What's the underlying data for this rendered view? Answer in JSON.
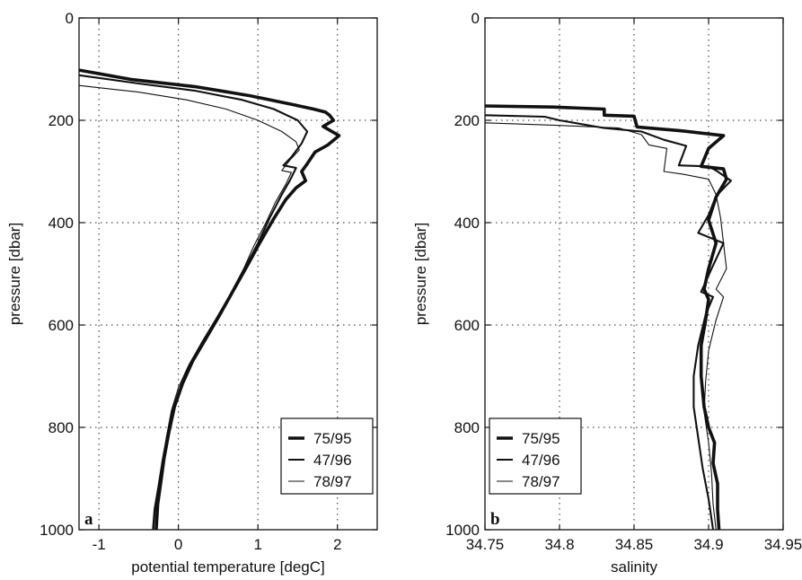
{
  "chart_data": [
    {
      "type": "line",
      "panel_label": "a",
      "xlabel": "potential temperature [degC]",
      "ylabel": "pressure [dbar]",
      "xlim": [
        -1.25,
        2.5
      ],
      "ylim": [
        1000,
        0
      ],
      "y_reversed": true,
      "xticks": [
        -1,
        0,
        1,
        2
      ],
      "xtick_labels": [
        "-1",
        "0",
        "1",
        "2"
      ],
      "yticks": [
        0,
        200,
        400,
        600,
        800,
        1000
      ],
      "ytick_labels": [
        "0",
        "200",
        "400",
        "600",
        "800",
        "1000"
      ],
      "grid": true,
      "legend_position": "lower-right",
      "series": [
        {
          "name": "75/95",
          "line_weight": "thick",
          "points": [
            [
              -1.25,
              102
            ],
            [
              -0.6,
              120
            ],
            [
              0.2,
              134
            ],
            [
              0.9,
              152
            ],
            [
              1.4,
              168
            ],
            [
              1.7,
              178
            ],
            [
              1.85,
              184
            ],
            [
              1.9,
              190
            ],
            [
              1.95,
              200
            ],
            [
              1.82,
              212
            ],
            [
              2.02,
              230
            ],
            [
              1.88,
              248
            ],
            [
              1.72,
              262
            ],
            [
              1.62,
              285
            ],
            [
              1.55,
              300
            ],
            [
              1.6,
              318
            ],
            [
              1.48,
              332
            ],
            [
              1.35,
              355
            ],
            [
              1.2,
              392
            ],
            [
              1.02,
              440
            ],
            [
              0.88,
              480
            ],
            [
              0.7,
              530
            ],
            [
              0.52,
              580
            ],
            [
              0.35,
              625
            ],
            [
              0.18,
              670
            ],
            [
              0.05,
              715
            ],
            [
              -0.05,
              760
            ],
            [
              -0.12,
              810
            ],
            [
              -0.18,
              860
            ],
            [
              -0.22,
              905
            ],
            [
              -0.26,
              950
            ],
            [
              -0.28,
              1000
            ]
          ]
        },
        {
          "name": "47/96",
          "line_weight": "medium",
          "points": [
            [
              -1.25,
              112
            ],
            [
              -0.5,
              128
            ],
            [
              0.2,
              142
            ],
            [
              0.8,
              160
            ],
            [
              1.2,
              178
            ],
            [
              1.5,
              200
            ],
            [
              1.62,
              222
            ],
            [
              1.55,
              245
            ],
            [
              1.42,
              272
            ],
            [
              1.32,
              288
            ],
            [
              1.48,
              293
            ],
            [
              1.4,
              318
            ],
            [
              1.3,
              345
            ],
            [
              1.15,
              390
            ],
            [
              1.0,
              440
            ],
            [
              0.85,
              485
            ],
            [
              0.68,
              535
            ],
            [
              0.5,
              585
            ],
            [
              0.32,
              630
            ],
            [
              0.15,
              675
            ],
            [
              0.03,
              720
            ],
            [
              -0.07,
              765
            ],
            [
              -0.14,
              815
            ],
            [
              -0.2,
              865
            ],
            [
              -0.25,
              915
            ],
            [
              -0.3,
              960
            ],
            [
              -0.32,
              1000
            ]
          ]
        },
        {
          "name": "78/97",
          "line_weight": "thin",
          "points": [
            [
              -1.25,
              132
            ],
            [
              -0.5,
              145
            ],
            [
              0.1,
              160
            ],
            [
              0.6,
              178
            ],
            [
              1.0,
              200
            ],
            [
              1.3,
              222
            ],
            [
              1.48,
              242
            ],
            [
              1.52,
              258
            ],
            [
              1.4,
              278
            ],
            [
              1.3,
              298
            ],
            [
              1.42,
              302
            ],
            [
              1.35,
              325
            ],
            [
              1.22,
              360
            ],
            [
              1.1,
              400
            ],
            [
              0.95,
              445
            ],
            [
              0.82,
              490
            ],
            [
              0.65,
              540
            ],
            [
              0.47,
              588
            ],
            [
              0.3,
              632
            ],
            [
              0.13,
              678
            ],
            [
              0.0,
              722
            ],
            [
              -0.09,
              768
            ],
            [
              -0.15,
              818
            ],
            [
              -0.2,
              868
            ],
            [
              -0.24,
              915
            ],
            [
              -0.29,
              960
            ],
            [
              -0.31,
              1000
            ]
          ]
        }
      ]
    },
    {
      "type": "line",
      "panel_label": "b",
      "xlabel": "salinity",
      "ylabel": "pressure [dbar]",
      "xlim": [
        34.75,
        34.95
      ],
      "ylim": [
        1000,
        0
      ],
      "y_reversed": true,
      "xticks": [
        34.75,
        34.8,
        34.85,
        34.9,
        34.95
      ],
      "xtick_labels": [
        "34.75",
        "34.8",
        "34.85",
        "34.9",
        "34.95"
      ],
      "yticks": [
        0,
        200,
        400,
        600,
        800,
        1000
      ],
      "ytick_labels": [
        "0",
        "200",
        "400",
        "600",
        "800",
        "1000"
      ],
      "grid": true,
      "legend_position": "lower-left",
      "series": [
        {
          "name": "75/95",
          "line_weight": "thick",
          "points": [
            [
              34.75,
              172
            ],
            [
              34.795,
              174
            ],
            [
              34.83,
              178
            ],
            [
              34.83,
              190
            ],
            [
              34.85,
              192
            ],
            [
              34.852,
              213
            ],
            [
              34.88,
              220
            ],
            [
              34.91,
              230
            ],
            [
              34.9,
              255
            ],
            [
              34.895,
              290
            ],
            [
              34.91,
              295
            ],
            [
              34.912,
              315
            ],
            [
              34.905,
              350
            ],
            [
              34.9,
              395
            ],
            [
              34.905,
              440
            ],
            [
              34.9,
              490
            ],
            [
              34.897,
              530
            ],
            [
              34.9,
              550
            ],
            [
              34.898,
              590
            ],
            [
              34.895,
              640
            ],
            [
              34.895,
              700
            ],
            [
              34.897,
              760
            ],
            [
              34.9,
              800
            ],
            [
              34.904,
              830
            ],
            [
              34.903,
              870
            ],
            [
              34.906,
              910
            ],
            [
              34.906,
              960
            ],
            [
              34.907,
              1000
            ]
          ]
        },
        {
          "name": "47/96",
          "line_weight": "medium",
          "points": [
            [
              34.75,
              190
            ],
            [
              34.79,
              193
            ],
            [
              34.8,
              200
            ],
            [
              34.83,
              215
            ],
            [
              34.855,
              222
            ],
            [
              34.87,
              238
            ],
            [
              34.885,
              250
            ],
            [
              34.88,
              288
            ],
            [
              34.9,
              290
            ],
            [
              34.905,
              298
            ],
            [
              34.915,
              318
            ],
            [
              34.905,
              348
            ],
            [
              34.9,
              385
            ],
            [
              34.893,
              420
            ],
            [
              34.91,
              440
            ],
            [
              34.902,
              490
            ],
            [
              34.895,
              535
            ],
            [
              34.903,
              545
            ],
            [
              34.898,
              580
            ],
            [
              34.893,
              640
            ],
            [
              34.89,
              700
            ],
            [
              34.89,
              760
            ],
            [
              34.893,
              820
            ],
            [
              34.896,
              880
            ],
            [
              34.9,
              940
            ],
            [
              34.903,
              1000
            ]
          ]
        },
        {
          "name": "78/97",
          "line_weight": "thin",
          "points": [
            [
              34.75,
              205
            ],
            [
              34.8,
              210
            ],
            [
              34.84,
              215
            ],
            [
              34.855,
              228
            ],
            [
              34.86,
              248
            ],
            [
              34.872,
              255
            ],
            [
              34.87,
              300
            ],
            [
              34.882,
              305
            ],
            [
              34.9,
              315
            ],
            [
              34.905,
              345
            ],
            [
              34.908,
              390
            ],
            [
              34.91,
              440
            ],
            [
              34.912,
              490
            ],
            [
              34.905,
              530
            ],
            [
              34.91,
              545
            ],
            [
              34.905,
              590
            ],
            [
              34.9,
              650
            ],
            [
              34.898,
              710
            ],
            [
              34.897,
              770
            ],
            [
              34.9,
              830
            ],
            [
              34.902,
              890
            ],
            [
              34.903,
              950
            ],
            [
              34.905,
              1000
            ]
          ]
        }
      ]
    }
  ]
}
